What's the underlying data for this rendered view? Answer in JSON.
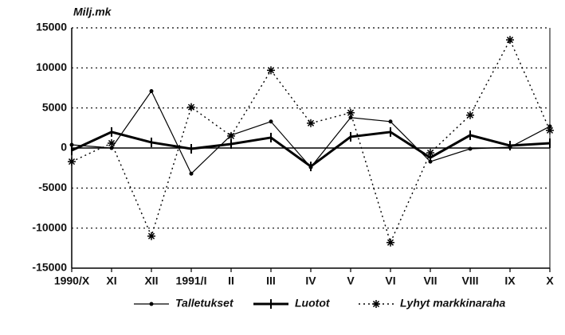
{
  "chart_data": {
    "type": "line",
    "ylabel": "Milj.mk",
    "categories": [
      "1990/X",
      "XI",
      "XII",
      "1991/I",
      "II",
      "III",
      "IV",
      "V",
      "VI",
      "VII",
      "VIII",
      "IX",
      "X"
    ],
    "series": [
      {
        "name": "Talletukset",
        "color": "#000000",
        "values": [
          400,
          0,
          7100,
          -3200,
          1600,
          3300,
          -2400,
          3800,
          3300,
          -1700,
          -100,
          100,
          2700
        ]
      },
      {
        "name": "Luotot",
        "color": "#000000",
        "values": [
          -300,
          2000,
          700,
          -100,
          500,
          1300,
          -2300,
          1400,
          2000,
          -1200,
          1600,
          300,
          600
        ]
      },
      {
        "name": "Lyhyt markkinaraha",
        "color": "#000000",
        "values": [
          -1700,
          600,
          -11000,
          5100,
          1500,
          9700,
          3100,
          4400,
          -11800,
          -600,
          4100,
          13500,
          2200
        ]
      }
    ],
    "ylim": [
      -15000,
      15000
    ],
    "yticks": [
      -15000,
      -10000,
      -5000,
      0,
      5000,
      10000,
      15000
    ],
    "grid": true
  }
}
